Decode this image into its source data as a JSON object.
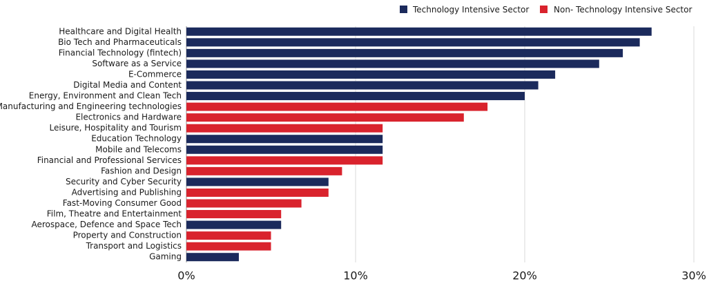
{
  "chart_data": {
    "type": "bar",
    "orientation": "horizontal",
    "title": "",
    "xlabel": "",
    "ylabel": "",
    "xlim": [
      0,
      30
    ],
    "x_ticks": [
      "0%",
      "10%",
      "20%",
      "30%"
    ],
    "grid": "vertical",
    "legend_position": "top-right",
    "series": [
      {
        "name": "Technology Intensive Sector",
        "color": "#1b2a5c"
      },
      {
        "name": "Non- Technology Intensive Sector",
        "color": "#d9232d"
      }
    ],
    "categories": [
      "Healthcare and Digital Health",
      "Bio Tech and Pharmaceuticals",
      "Financial Technology (fintech)",
      "Software as a Service",
      "E-Commerce",
      "Digital Media and Content",
      "Energy, Environment and Clean Tech",
      "Manufacturing and Engineering technologies",
      "Electronics and Hardware",
      "Leisure, Hospitality and Tourism",
      "Education Technology",
      "Mobile and Telecoms",
      "Financial and Professional Services",
      "Fashion and Design",
      "Security and Cyber Security",
      "Advertising and Publishing",
      "Fast-Moving Consumer Good",
      "Film, Theatre and Entertainment",
      "Aerospace, Defence and Space Tech",
      "Property and Construction",
      "Transport and Logistics",
      "Gaming"
    ],
    "values": [
      27.5,
      26.8,
      25.8,
      24.4,
      21.8,
      20.8,
      20.0,
      17.8,
      16.4,
      11.6,
      11.6,
      11.6,
      11.6,
      9.2,
      8.4,
      8.4,
      6.8,
      5.6,
      5.6,
      5.0,
      5.0,
      3.1
    ],
    "series_index": [
      0,
      0,
      0,
      0,
      0,
      0,
      0,
      1,
      1,
      1,
      0,
      0,
      1,
      1,
      0,
      1,
      1,
      1,
      0,
      1,
      1,
      0
    ]
  }
}
